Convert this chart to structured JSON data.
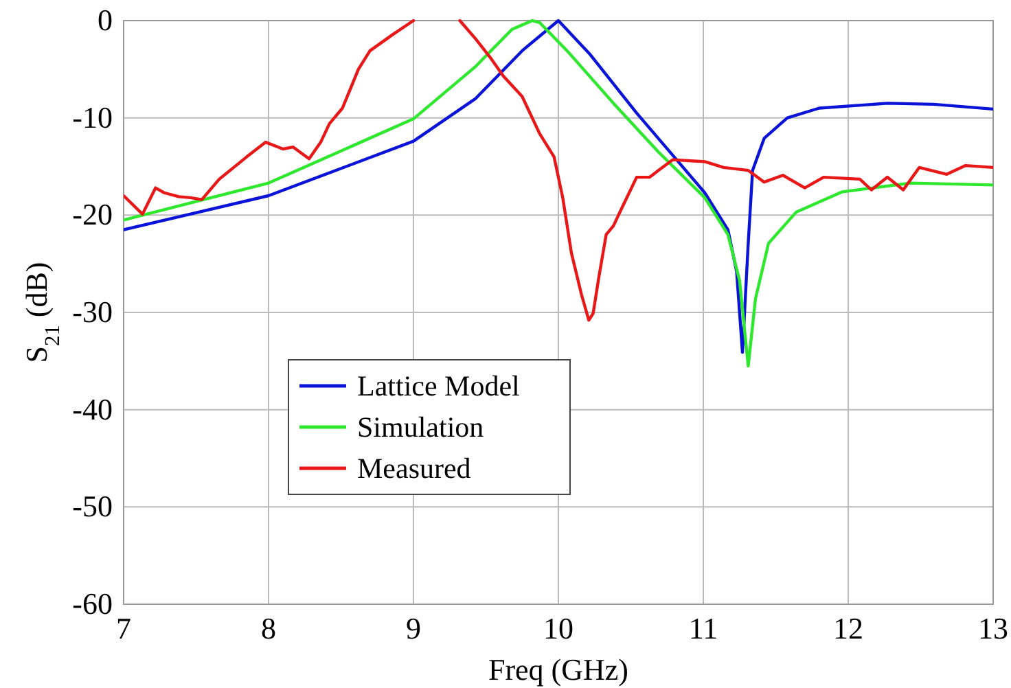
{
  "chart_data": {
    "type": "line",
    "xlabel": "Freq (GHz)",
    "ylabel": "S$_{21}$ (dB)",
    "xlim": [
      7,
      13
    ],
    "ylim": [
      -60,
      0
    ],
    "xticks": [
      7,
      8,
      9,
      10,
      11,
      12,
      13
    ],
    "yticks": [
      -60,
      -50,
      -40,
      -30,
      -20,
      -10,
      0
    ],
    "grid": true,
    "legend": "center left",
    "line_style": "solid",
    "marker": "none",
    "series": [
      {
        "name": "Lattice Model",
        "color": "#0a14d8",
        "x": [
          7.0,
          8.0,
          9.0,
          9.43,
          9.75,
          10.0,
          10.22,
          10.54,
          10.85,
          11.01,
          11.17,
          11.23,
          11.27,
          11.31,
          11.34,
          11.42,
          11.58,
          11.8,
          12.27,
          12.59,
          13.0
        ],
        "values": [
          -21.5,
          -18.0,
          -12.4,
          -8.0,
          -3.1,
          0,
          -3.5,
          -9.5,
          -14.9,
          -17.7,
          -21.5,
          -25.8,
          -34.1,
          -22.9,
          -15.4,
          -12.1,
          -10.0,
          -9.0,
          -8.5,
          -8.6,
          -9.1
        ]
      },
      {
        "name": "Simulation",
        "color": "#2ee82e",
        "x": [
          7.0,
          8.0,
          9.0,
          9.43,
          9.68,
          9.82,
          9.87,
          10.06,
          10.38,
          10.69,
          11.01,
          11.17,
          11.25,
          11.31,
          11.36,
          11.45,
          11.64,
          11.96,
          12.43,
          13.0
        ],
        "values": [
          -20.5,
          -16.7,
          -10.1,
          -4.7,
          -0.9,
          0,
          -0.2,
          -3.1,
          -8.5,
          -13.5,
          -18.2,
          -22.0,
          -26.7,
          -35.5,
          -28.6,
          -22.9,
          -19.7,
          -17.6,
          -16.7,
          -16.9
        ]
      },
      {
        "name": "Measured",
        "color": "#e81818",
        "x": [
          7.0,
          7.13,
          7.22,
          7.28,
          7.38,
          7.46,
          7.54,
          7.66,
          7.85,
          7.98,
          8.1,
          8.17,
          8.28,
          8.36,
          8.42,
          8.51,
          8.62,
          8.7,
          8.86,
          9.0,
          9.16,
          9.32,
          9.43,
          9.53,
          9.62,
          9.75,
          9.87,
          9.97,
          10.03,
          10.09,
          10.16,
          10.21,
          10.24,
          10.28,
          10.33,
          10.38,
          10.44,
          10.54,
          10.63,
          10.69,
          10.79,
          11.01,
          11.14,
          11.31,
          11.42,
          11.55,
          11.7,
          11.83,
          12.08,
          12.16,
          12.27,
          12.38,
          12.49,
          12.68,
          12.81,
          13.0
        ],
        "values": [
          -18.0,
          -19.9,
          -17.2,
          -17.7,
          -18.1,
          -18.2,
          -18.4,
          -16.3,
          -14.0,
          -12.5,
          -13.2,
          -13.0,
          -14.2,
          -12.5,
          -10.6,
          -9.0,
          -5.0,
          -3.1,
          -1.4,
          0,
          null,
          0,
          -1.9,
          -3.8,
          -5.7,
          -7.8,
          -11.6,
          -14.0,
          -18.2,
          -23.9,
          -28.2,
          -30.8,
          -30.1,
          -26.3,
          -22.0,
          -21.1,
          -19.2,
          -16.1,
          -16.1,
          -15.4,
          -14.3,
          -14.5,
          -15.1,
          -15.4,
          -16.6,
          -15.9,
          -17.2,
          -16.1,
          -16.3,
          -17.4,
          -16.1,
          -17.4,
          -15.1,
          -15.8,
          -14.9,
          -15.1
        ]
      }
    ]
  }
}
